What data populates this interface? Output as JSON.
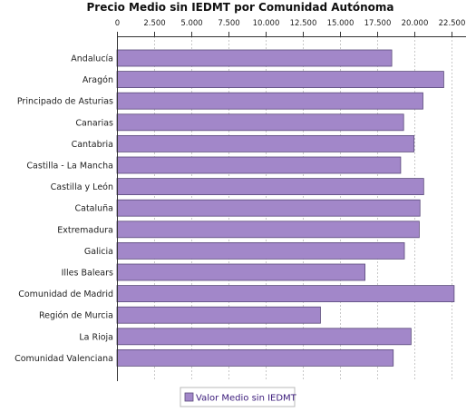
{
  "chart_data": {
    "type": "bar",
    "orientation": "horizontal",
    "title": "Precio Medio sin IEDMT por Comunidad Autónoma",
    "xlabel": "",
    "ylabel": "",
    "xlim": [
      0,
      23500
    ],
    "x_ticks": [
      0,
      2500,
      5000,
      7500,
      10000,
      12500,
      15000,
      17500,
      20000,
      22500
    ],
    "x_tick_labels": [
      "0",
      "2.500",
      "5.000",
      "7.500",
      "10.000",
      "12.500",
      "15.000",
      "17.500",
      "20.000",
      "22.500"
    ],
    "x_axis_position": "top",
    "grid": true,
    "legend_position": "bottom",
    "categories": [
      "Andalucía",
      "Aragón",
      "Principado de Asturias",
      "Canarias",
      "Cantabria",
      "Castilla - La Mancha",
      "Castilla y León",
      "Cataluña",
      "Extremadura",
      "Galicia",
      "Illes Balears",
      "Comunidad de Madrid",
      "Región de Murcia",
      "La Rioja",
      "Comunidad Valenciana"
    ],
    "series": [
      {
        "name": "Valor Medio sin IEDMT",
        "color": "#a287c9",
        "values": [
          18500,
          22000,
          20600,
          19300,
          20000,
          19100,
          20650,
          20400,
          20350,
          19350,
          16700,
          22700,
          13700,
          19800,
          18600
        ]
      }
    ]
  }
}
